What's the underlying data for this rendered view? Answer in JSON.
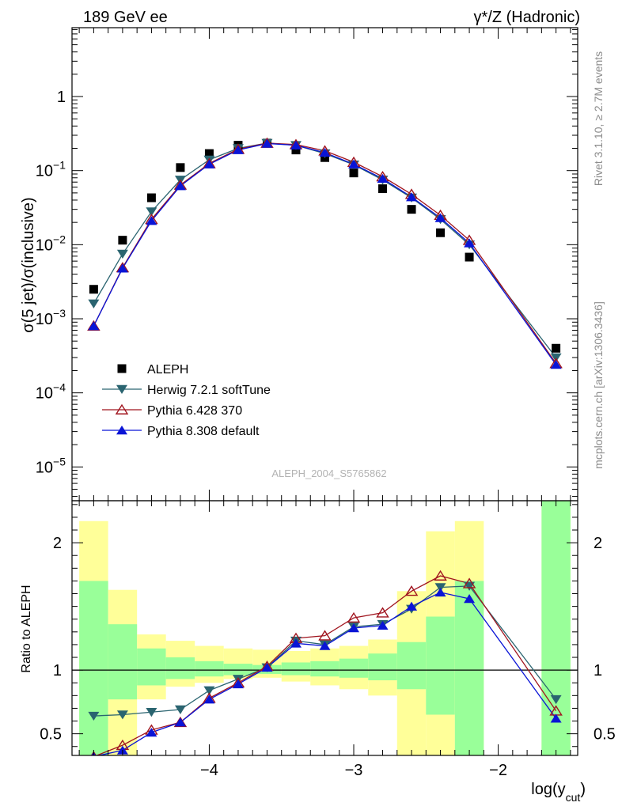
{
  "header": {
    "left_label": "189 GeV ee",
    "right_label_main": "γ*/Z (Hadronic)"
  },
  "side_labels": {
    "rivet": "Rivet 3.1.10, ≥ 2.7M events",
    "mcplots": "mcplots.cern.ch [arXiv:1306.3436]"
  },
  "watermark": "ALEPH_2004_S5765862",
  "legend_placement": "lower-left",
  "colors": {
    "aleph": "#000000",
    "herwig": "#2a6470",
    "pythia6": "#a0141e",
    "pythia8": "#0a14d6",
    "band_green": "#99ff99",
    "band_yellow": "#ffff99"
  },
  "chart_data": [
    {
      "type": "scatter",
      "title": "",
      "ylabel": "σ(5 jet)/σ(inclusive)",
      "xlabel": "log(y_cut)",
      "yscale": "log",
      "xlim": [
        -4.95,
        -1.45
      ],
      "ylim": [
        3.5e-06,
        8.5
      ],
      "y_ticks": [
        {
          "value": 1e-05,
          "base": "10",
          "exp": "−5"
        },
        {
          "value": 0.0001,
          "base": "10",
          "exp": "−4"
        },
        {
          "value": 0.001,
          "base": "10",
          "exp": "−3"
        },
        {
          "value": 0.01,
          "base": "10",
          "exp": "−2"
        },
        {
          "value": 0.1,
          "base": "10",
          "exp": "−1"
        },
        {
          "value": 1,
          "base": "1",
          "exp": ""
        }
      ],
      "series": [
        {
          "name": "ALEPH",
          "key": "aleph",
          "marker": "square",
          "x": [
            -4.8,
            -4.6,
            -4.4,
            -4.2,
            -4.0,
            -3.8,
            -3.6,
            -3.4,
            -3.2,
            -3.0,
            -2.8,
            -2.6,
            -2.4,
            -2.2,
            -1.6
          ],
          "y": [
            0.0025,
            0.0115,
            0.043,
            0.11,
            0.17,
            0.22,
            0.235,
            0.19,
            0.15,
            0.093,
            0.057,
            0.03,
            0.0145,
            0.0068,
            0.0004
          ]
        },
        {
          "name": "Herwig 7.2.1 softTune",
          "key": "herwig",
          "marker": "triangle-down",
          "x": [
            -4.8,
            -4.6,
            -4.4,
            -4.2,
            -4.0,
            -3.8,
            -3.6,
            -3.4,
            -3.2,
            -3.0,
            -2.8,
            -2.6,
            -2.4,
            -2.2,
            -1.6
          ],
          "y": [
            0.0016,
            0.0075,
            0.028,
            0.075,
            0.14,
            0.2,
            0.235,
            0.22,
            0.17,
            0.12,
            0.075,
            0.043,
            0.022,
            0.01,
            0.0003
          ]
        },
        {
          "name": "Pythia 6.428 370",
          "key": "pythia6",
          "marker": "triangle-up-open",
          "x": [
            -4.8,
            -4.6,
            -4.4,
            -4.2,
            -4.0,
            -3.8,
            -3.6,
            -3.4,
            -3.2,
            -3.0,
            -2.8,
            -2.6,
            -2.4,
            -2.2,
            -1.6
          ],
          "y": [
            0.0008,
            0.0049,
            0.022,
            0.064,
            0.125,
            0.195,
            0.235,
            0.225,
            0.185,
            0.13,
            0.083,
            0.048,
            0.025,
            0.0115,
            0.00025
          ]
        },
        {
          "name": "Pythia 8.308 default",
          "key": "pythia8",
          "marker": "triangle-up",
          "x": [
            -4.8,
            -4.6,
            -4.4,
            -4.2,
            -4.0,
            -3.8,
            -3.6,
            -3.4,
            -3.2,
            -3.0,
            -2.8,
            -2.6,
            -2.4,
            -2.2,
            -1.6
          ],
          "y": [
            0.0008,
            0.0048,
            0.021,
            0.062,
            0.122,
            0.19,
            0.232,
            0.22,
            0.175,
            0.122,
            0.078,
            0.044,
            0.023,
            0.0105,
            0.00024
          ]
        }
      ]
    },
    {
      "type": "line",
      "title": "",
      "ylabel": "Ratio to ALEPH",
      "xlabel": "log(y_cut)",
      "xlim": [
        -4.95,
        -1.45
      ],
      "ylim": [
        0.33,
        2.33
      ],
      "y_ticks": [
        {
          "value": 0.5,
          "label": "0.5"
        },
        {
          "value": 1,
          "label": "1"
        },
        {
          "value": 2,
          "label": "2"
        }
      ],
      "x_ticks": [
        {
          "value": -4,
          "label": "−4"
        },
        {
          "value": -3,
          "label": "−3"
        },
        {
          "value": -2,
          "label": "−2"
        }
      ],
      "reference_line": 1,
      "uncertainty_bands": [
        {
          "x0": -4.9,
          "x1": -4.7,
          "stat_lo": 0.33,
          "stat_hi": 1.7,
          "tot_lo": 0.33,
          "tot_hi": 2.17
        },
        {
          "x0": -4.7,
          "x1": -4.5,
          "stat_lo": 0.77,
          "stat_hi": 1.36,
          "tot_lo": 0.33,
          "tot_hi": 1.63
        },
        {
          "x0": -4.5,
          "x1": -4.3,
          "stat_lo": 0.88,
          "stat_hi": 1.17,
          "tot_lo": 0.77,
          "tot_hi": 1.28
        },
        {
          "x0": -4.3,
          "x1": -4.1,
          "stat_lo": 0.93,
          "stat_hi": 1.1,
          "tot_lo": 0.87,
          "tot_hi": 1.23
        },
        {
          "x0": -4.1,
          "x1": -3.9,
          "stat_lo": 0.95,
          "stat_hi": 1.07,
          "tot_lo": 0.9,
          "tot_hi": 1.19
        },
        {
          "x0": -3.9,
          "x1": -3.7,
          "stat_lo": 0.96,
          "stat_hi": 1.05,
          "tot_lo": 0.93,
          "tot_hi": 1.17
        },
        {
          "x0": -3.7,
          "x1": -3.5,
          "stat_lo": 0.97,
          "stat_hi": 1.04,
          "tot_lo": 0.94,
          "tot_hi": 1.16
        },
        {
          "x0": -3.5,
          "x1": -3.3,
          "stat_lo": 0.96,
          "stat_hi": 1.06,
          "tot_lo": 0.91,
          "tot_hi": 1.15
        },
        {
          "x0": -3.3,
          "x1": -3.1,
          "stat_lo": 0.95,
          "stat_hi": 1.07,
          "tot_lo": 0.88,
          "tot_hi": 1.17
        },
        {
          "x0": -3.1,
          "x1": -2.9,
          "stat_lo": 0.94,
          "stat_hi": 1.09,
          "tot_lo": 0.85,
          "tot_hi": 1.19
        },
        {
          "x0": -2.9,
          "x1": -2.7,
          "stat_lo": 0.92,
          "stat_hi": 1.13,
          "tot_lo": 0.8,
          "tot_hi": 1.24
        },
        {
          "x0": -2.7,
          "x1": -2.5,
          "stat_lo": 0.85,
          "stat_hi": 1.22,
          "tot_lo": 0.33,
          "tot_hi": 1.62
        },
        {
          "x0": -2.5,
          "x1": -2.3,
          "stat_lo": 0.65,
          "stat_hi": 1.42,
          "tot_lo": 0.33,
          "tot_hi": 2.09
        },
        {
          "x0": -2.3,
          "x1": -2.1,
          "stat_lo": 0.33,
          "stat_hi": 1.7,
          "tot_lo": 0.33,
          "tot_hi": 2.17
        },
        {
          "x0": -1.7,
          "x1": -1.5,
          "stat_lo": 0.33,
          "stat_hi": 2.33,
          "tot_lo": 0.33,
          "tot_hi": 2.33
        }
      ],
      "series": [
        {
          "name": "Herwig 7.2.1 softTune",
          "key": "herwig",
          "marker": "triangle-down",
          "x": [
            -4.8,
            -4.6,
            -4.4,
            -4.2,
            -4.0,
            -3.8,
            -3.6,
            -3.4,
            -3.2,
            -3.0,
            -2.8,
            -2.6,
            -2.4,
            -2.2,
            -1.6
          ],
          "y": [
            0.64,
            0.65,
            0.67,
            0.69,
            0.84,
            0.93,
            1.02,
            1.23,
            1.2,
            1.34,
            1.36,
            1.48,
            1.65,
            1.66,
            0.77
          ]
        },
        {
          "name": "Pythia 6.428 370",
          "key": "pythia6",
          "marker": "triangle-up-open",
          "x": [
            -4.8,
            -4.6,
            -4.4,
            -4.2,
            -4.0,
            -3.8,
            -3.6,
            -3.4,
            -3.2,
            -3.0,
            -2.8,
            -2.6,
            -2.4,
            -2.2,
            -1.6
          ],
          "y": [
            0.32,
            0.41,
            0.53,
            0.59,
            0.78,
            0.9,
            1.03,
            1.25,
            1.27,
            1.41,
            1.45,
            1.62,
            1.74,
            1.68,
            0.68
          ]
        },
        {
          "name": "Pythia 8.308 default",
          "key": "pythia8",
          "marker": "triangle-up",
          "x": [
            -4.8,
            -4.6,
            -4.4,
            -4.2,
            -4.0,
            -3.8,
            -3.6,
            -3.4,
            -3.2,
            -3.0,
            -2.8,
            -2.6,
            -2.4,
            -2.2,
            -1.6
          ],
          "y": [
            0.32,
            0.37,
            0.51,
            0.59,
            0.77,
            0.89,
            1.02,
            1.21,
            1.19,
            1.33,
            1.35,
            1.5,
            1.61,
            1.56,
            0.62
          ]
        }
      ]
    }
  ]
}
